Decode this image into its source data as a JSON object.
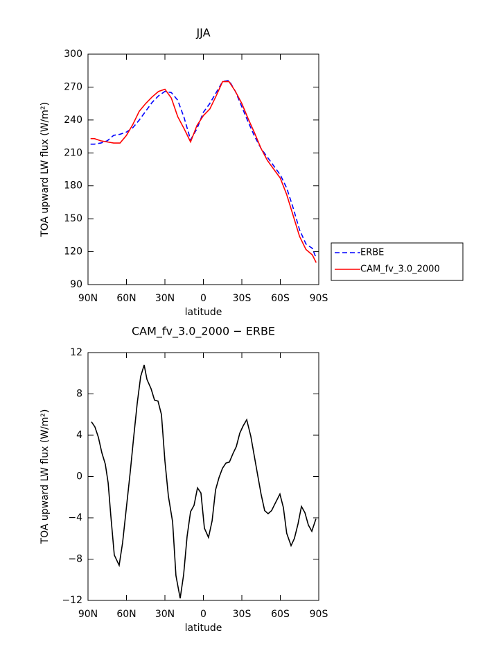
{
  "chart_data": [
    {
      "type": "line",
      "title": "JJA",
      "xlabel": "latitude",
      "ylabel": "TOA upward LW flux (W/m²)",
      "x": [
        88,
        85,
        80,
        75,
        70,
        65,
        60,
        55,
        50,
        45,
        40,
        35,
        30,
        25,
        20,
        15,
        10,
        5,
        0,
        -5,
        -10,
        -15,
        -20,
        -25,
        -30,
        -35,
        -40,
        -45,
        -50,
        -55,
        -60,
        -65,
        -70,
        -75,
        -80,
        -85,
        -88
      ],
      "series": [
        {
          "name": "ERBE",
          "color": "#0000ff",
          "linestyle": "dashed",
          "values": [
            218,
            218,
            219,
            221,
            226,
            227,
            229,
            233,
            240,
            248,
            256,
            262,
            266,
            265,
            258,
            242,
            222,
            232,
            247,
            255,
            265,
            275,
            276,
            266,
            252,
            238,
            225,
            214,
            206,
            198,
            190,
            178,
            160,
            140,
            127,
            123,
            114
          ]
        },
        {
          "name": "CAM_fv_3.0_2000",
          "color": "#ff0000",
          "linestyle": "solid",
          "values": [
            223,
            223,
            221,
            220,
            219,
            219,
            226,
            236,
            248,
            255,
            261,
            266,
            268,
            260,
            243,
            232,
            220,
            235,
            244,
            250,
            262,
            275,
            275,
            266,
            255,
            241,
            228,
            214,
            203,
            195,
            187,
            172,
            153,
            134,
            122,
            117,
            110
          ]
        }
      ],
      "xlim": [
        90,
        -90
      ],
      "xticks": [
        {
          "value": 90,
          "label": "90N"
        },
        {
          "value": 60,
          "label": "60N"
        },
        {
          "value": 30,
          "label": "30N"
        },
        0,
        {
          "value": -30,
          "label": "30S"
        },
        {
          "value": -60,
          "label": "60S"
        },
        {
          "value": -90,
          "label": "90S"
        }
      ],
      "ylim": [
        90,
        300
      ],
      "yticks": [
        90,
        120,
        150,
        180,
        210,
        240,
        270,
        300
      ],
      "legend": "outside-right"
    },
    {
      "type": "line",
      "title": "CAM_fv_3.0_2000 − ERBE",
      "xlabel": "latitude",
      "ylabel": "TOA upward LW flux (W/m²)",
      "x": [
        87.3,
        84.6,
        81.9,
        79.2,
        76.5,
        74.3,
        72.2,
        69.5,
        65.7,
        63,
        59.7,
        57,
        54.3,
        51.6,
        48.9,
        46.2,
        44,
        40.8,
        38.1,
        35.4,
        32.7,
        30,
        27.3,
        24,
        21.4,
        18.1,
        15.4,
        12.7,
        10,
        7.3,
        4.6,
        1.9,
        -0.8,
        -4,
        -6.8,
        -9.5,
        -12.2,
        -14.9,
        -17.6,
        -20.3,
        -23,
        -25.7,
        -28.4,
        -31,
        -33.8,
        -37,
        -39.7,
        -42.4,
        -45,
        -47.8,
        -50.5,
        -53.2,
        -56,
        -59.7,
        -62.4,
        -65,
        -68.4,
        -71,
        -73.8,
        -76.5,
        -79.2,
        -81.9,
        -84.6,
        -87.8
      ],
      "series": [
        {
          "name": null,
          "color": "#000000",
          "linestyle": "solid",
          "values": [
            5.3,
            4.8,
            3.8,
            2.3,
            1.2,
            -0.6,
            -3.8,
            -7.6,
            -8.6,
            -6.4,
            -2.6,
            0.5,
            3.9,
            7.1,
            9.7,
            10.8,
            9.4,
            8.5,
            7.4,
            7.3,
            6.0,
            1.5,
            -1.9,
            -4.4,
            -9.6,
            -11.8,
            -9.5,
            -5.8,
            -3.4,
            -2.8,
            -1.1,
            -1.6,
            -5.0,
            -5.9,
            -4.3,
            -1.3,
            -0.1,
            0.8,
            1.3,
            1.4,
            2.2,
            2.9,
            4.2,
            4.9,
            5.5,
            3.9,
            2.0,
            0.1,
            -1.7,
            -3.3,
            -3.6,
            -3.3,
            -2.6,
            -1.7,
            -3.0,
            -5.5,
            -6.7,
            -6.0,
            -4.6,
            -2.9,
            -3.5,
            -4.7,
            -5.3,
            -4.1
          ]
        }
      ],
      "xlim": [
        90,
        -90
      ],
      "xticks": [
        {
          "value": 90,
          "label": "90N"
        },
        {
          "value": 60,
          "label": "60N"
        },
        {
          "value": 30,
          "label": "30N"
        },
        0,
        {
          "value": -30,
          "label": "30S"
        },
        {
          "value": -60,
          "label": "60S"
        },
        {
          "value": -90,
          "label": "90S"
        }
      ],
      "ylim": [
        -12,
        12
      ],
      "yticks": [
        {
          "value": -12,
          "label": "−12"
        },
        {
          "value": -8,
          "label": "−8"
        },
        {
          "value": -4,
          "label": "−4"
        },
        0,
        4,
        8,
        12
      ]
    }
  ]
}
